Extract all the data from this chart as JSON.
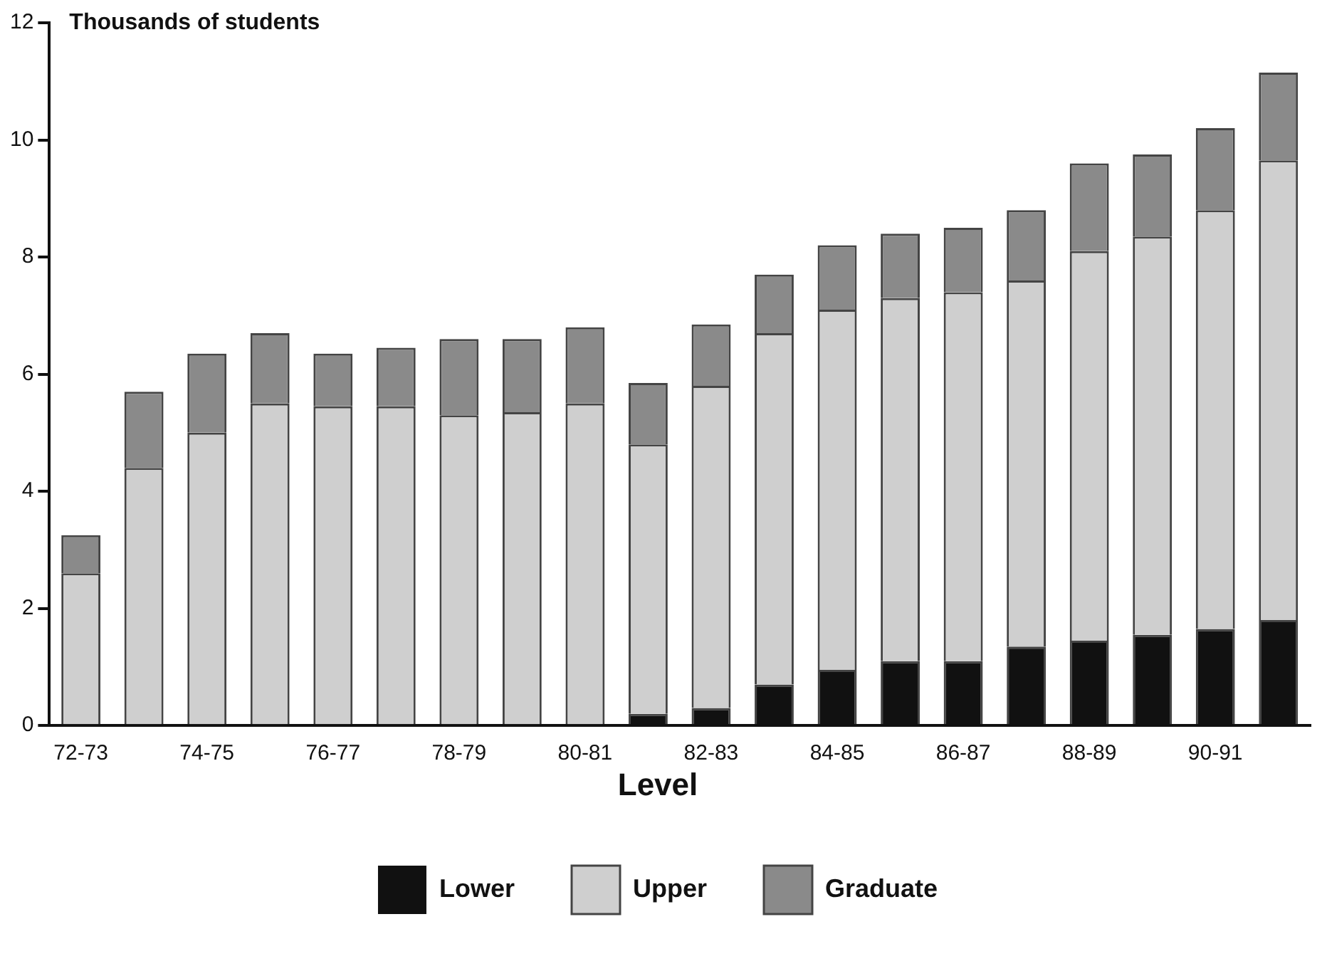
{
  "chart_data": {
    "type": "bar",
    "stacked": true,
    "ylabel": "Thousands of students",
    "legend_title": "Level",
    "legend": "bottom",
    "grid": false,
    "categories": [
      "72-73",
      null,
      "74-75",
      null,
      "76-77",
      null,
      "78-79",
      null,
      "80-81",
      null,
      "82-83",
      null,
      "84-85",
      null,
      "86-87",
      null,
      "88-89",
      null,
      "90-91",
      null
    ],
    "ylim": [
      0,
      12
    ],
    "yticks": [
      0,
      2,
      4,
      6,
      8,
      10,
      12
    ],
    "series": [
      {
        "name": "Lower",
        "color": "#111111",
        "values": [
          0,
          0,
          0,
          0,
          0,
          0,
          0,
          0,
          0,
          0.2,
          0.3,
          0.7,
          0.95,
          1.1,
          1.1,
          1.35,
          1.45,
          1.55,
          1.65,
          1.8
        ]
      },
      {
        "name": "Upper",
        "color": "#cfcfcf",
        "values": [
          2.6,
          4.4,
          5.0,
          5.5,
          5.45,
          5.45,
          5.3,
          5.35,
          5.5,
          4.6,
          5.5,
          6.0,
          6.15,
          6.2,
          6.3,
          6.25,
          6.65,
          6.8,
          7.15,
          7.85
        ]
      },
      {
        "name": "Graduate",
        "color": "#8a8a8a",
        "values": [
          0.65,
          1.3,
          1.35,
          1.2,
          0.9,
          1.0,
          1.3,
          1.25,
          1.3,
          1.05,
          1.05,
          1.0,
          1.1,
          1.1,
          1.1,
          1.2,
          1.5,
          1.4,
          1.4,
          1.5
        ]
      }
    ]
  }
}
